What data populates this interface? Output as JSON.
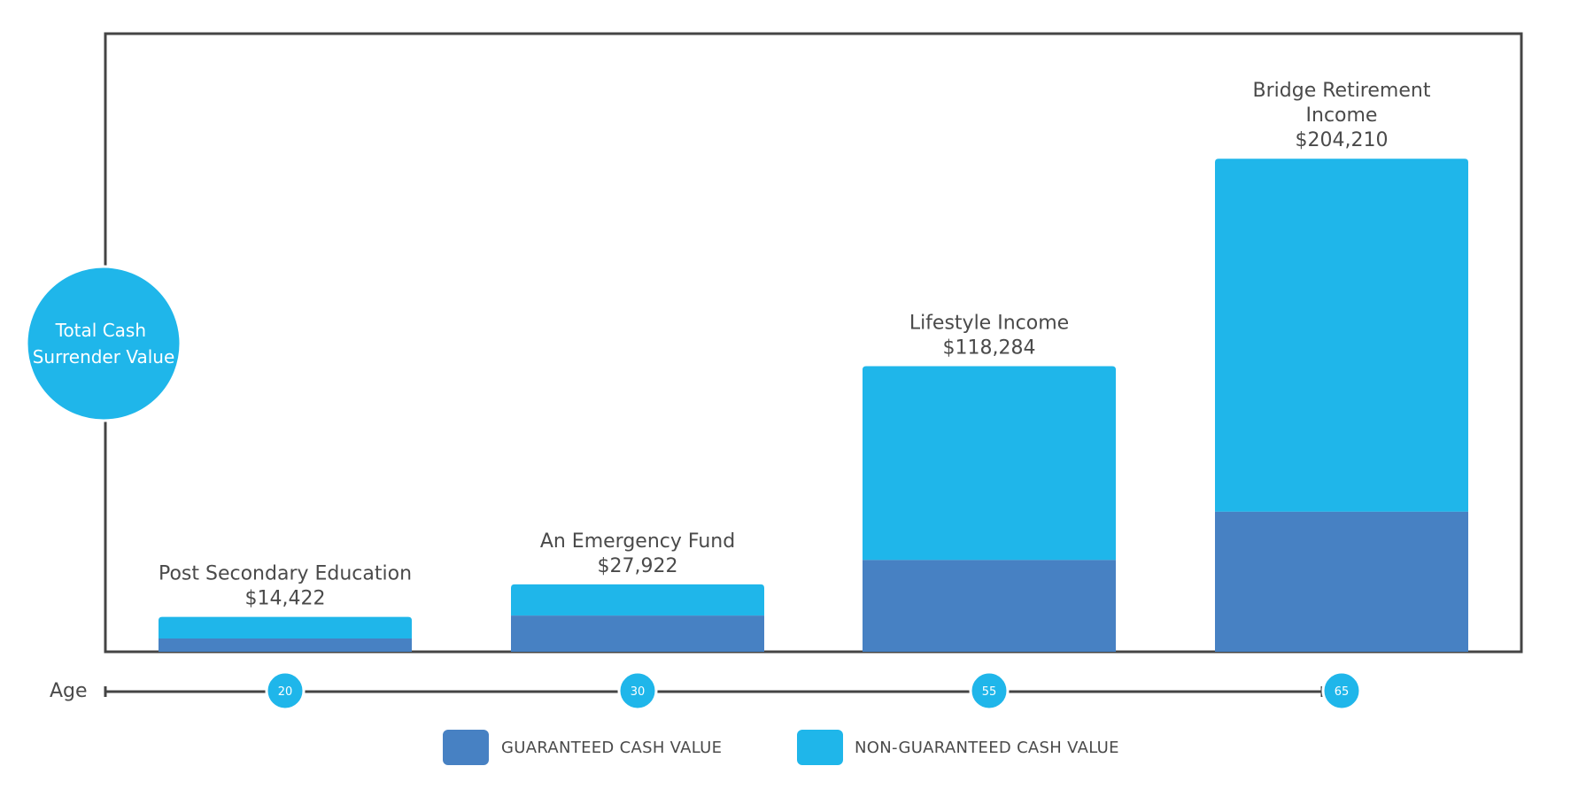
{
  "chart_data": {
    "type": "bar",
    "stacked": true,
    "y_axis_title_lines": [
      "Total Cash",
      "Surrender Value"
    ],
    "x_axis_label": "Age",
    "categories": [
      {
        "title_lines": [
          "Post Secondary Education"
        ],
        "value_label": "$14,422",
        "age": "20"
      },
      {
        "title_lines": [
          "An Emergency Fund"
        ],
        "value_label": "$27,922",
        "age": "30"
      },
      {
        "title_lines": [
          "Lifestyle Income"
        ],
        "value_label": "$118,284",
        "age": "55"
      },
      {
        "title_lines": [
          "Bridge Retirement",
          "Income"
        ],
        "value_label": "$204,210",
        "age": "65"
      }
    ],
    "series": [
      {
        "name": "GUARANTEED CASH VALUE",
        "color": "#4781c3",
        "values": [
          5500,
          15000,
          38000,
          58000
        ]
      },
      {
        "name": "NON-GUARANTEED CASH VALUE",
        "color": "#1fb6ea",
        "values": [
          8922,
          12922,
          80284,
          146210
        ]
      }
    ],
    "totals": [
      14422,
      27922,
      118284,
      204210
    ],
    "ylim": [
      0,
      256000
    ],
    "grid": false,
    "legend_position": "bottom"
  }
}
